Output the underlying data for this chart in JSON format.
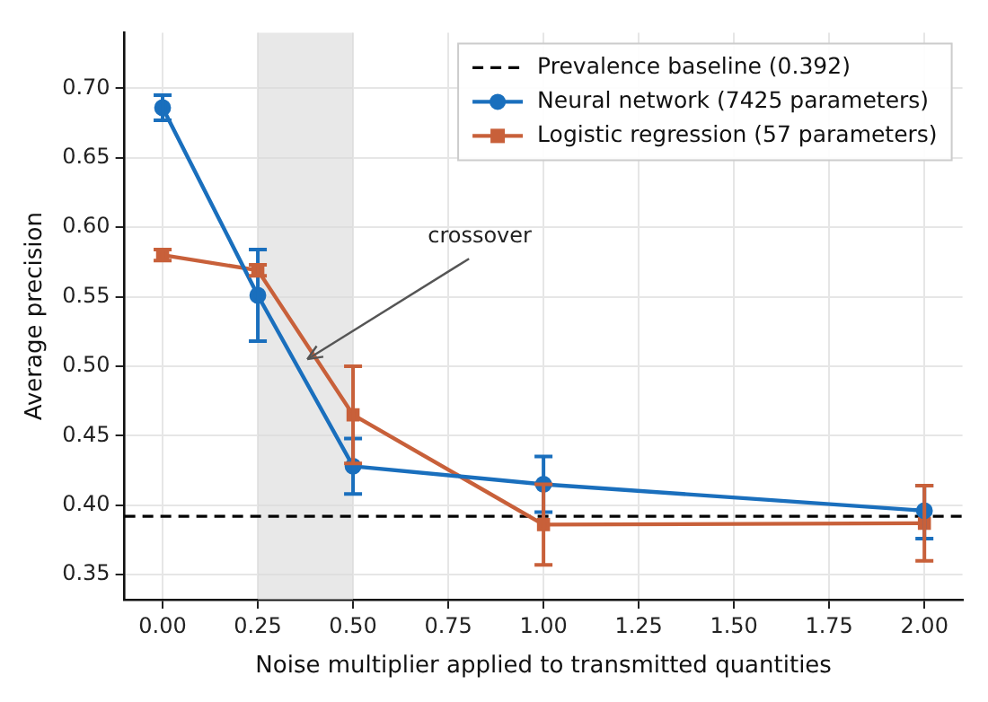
{
  "chart_data": {
    "type": "line",
    "xlabel": "Noise multiplier applied to transmitted quantities",
    "ylabel": "Average precision",
    "x": [
      0,
      0.25,
      0.5,
      1.0,
      2.0
    ],
    "series": [
      {
        "name": "Neural network (7425 parameters)",
        "color": "#1a6fbd",
        "marker": "circle",
        "values": [
          0.686,
          0.551,
          0.428,
          0.415,
          0.396
        ],
        "errors": [
          [
            0.677,
            0.695
          ],
          [
            0.518,
            0.584
          ],
          [
            0.408,
            0.448
          ],
          [
            0.395,
            0.435
          ],
          [
            0.376,
            0.414
          ]
        ]
      },
      {
        "name": "Logistic regression (57 parameters)",
        "color": "#c8603a",
        "marker": "square",
        "values": [
          0.58,
          0.569,
          0.465,
          0.386,
          0.387
        ],
        "errors": [
          0.004,
          0.004,
          0.035,
          0.029,
          0.027
        ]
      }
    ],
    "ref_lines": [
      {
        "axis": "y",
        "value": 0.392,
        "label": "Prevalence baseline (0.392)",
        "color": "#000000",
        "line_style": "dashed"
      }
    ],
    "bands": [
      {
        "axis": "x",
        "from": 0.25,
        "to": 0.5,
        "color": "#d9d9d9"
      }
    ],
    "annotations": [
      {
        "text": "crossover",
        "x": 0.38,
        "y": 0.505
      }
    ],
    "xlim": [
      -0.1,
      2.1
    ],
    "ylim": [
      0.332,
      0.74
    ],
    "xticks": [
      {
        "value": 0,
        "label": "0.00"
      },
      {
        "value": 0.25,
        "label": "0.25"
      },
      {
        "value": 0.5,
        "label": "0.50"
      },
      {
        "value": 0.75,
        "label": "0.75"
      },
      {
        "value": 1,
        "label": "1.00"
      },
      {
        "value": 1.25,
        "label": "1.25"
      },
      {
        "value": 1.5,
        "label": "1.50"
      },
      {
        "value": 1.75,
        "label": "1.75"
      },
      {
        "value": 2,
        "label": "2.00"
      }
    ],
    "yticks": [
      {
        "value": 0.35,
        "label": "0.35"
      },
      {
        "value": 0.4,
        "label": "0.40"
      },
      {
        "value": 0.45,
        "label": "0.45"
      },
      {
        "value": 0.5,
        "label": "0.50"
      },
      {
        "value": 0.55,
        "label": "0.55"
      },
      {
        "value": 0.6,
        "label": "0.60"
      },
      {
        "value": 0.65,
        "label": "0.65"
      },
      {
        "value": 0.7,
        "label": "0.70"
      }
    ],
    "grid": true,
    "legend": "top right",
    "line_style": "solid"
  }
}
